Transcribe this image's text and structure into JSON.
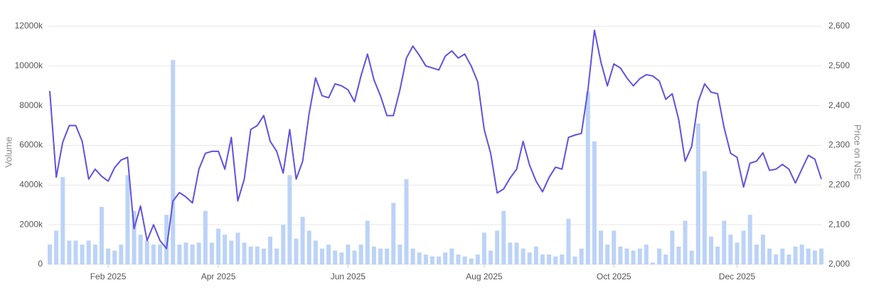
{
  "chart_data": {
    "type": "combo",
    "ylabel": "Volume",
    "y2label": "Price on NSE",
    "grid": true,
    "categories": [
      null,
      null,
      null,
      null,
      null,
      null,
      null,
      null,
      null,
      "Feb 2025",
      null,
      null,
      null,
      null,
      null,
      null,
      null,
      null,
      null,
      null,
      null,
      null,
      null,
      null,
      null,
      null,
      "Apr 2025",
      null,
      null,
      null,
      null,
      null,
      null,
      null,
      null,
      null,
      null,
      null,
      null,
      null,
      null,
      null,
      null,
      null,
      null,
      null,
      "Jun 2025",
      null,
      null,
      null,
      null,
      null,
      null,
      null,
      null,
      null,
      null,
      null,
      null,
      null,
      null,
      null,
      null,
      null,
      null,
      null,
      null,
      "Aug 2025",
      null,
      null,
      null,
      null,
      null,
      null,
      null,
      null,
      null,
      null,
      null,
      null,
      null,
      null,
      null,
      null,
      null,
      null,
      null,
      "Oct 2025",
      null,
      null,
      null,
      null,
      null,
      null,
      null,
      null,
      null,
      null,
      null,
      null,
      null,
      null,
      null,
      null,
      null,
      null,
      "Dec 2025",
      null,
      null,
      null,
      null,
      null,
      null,
      null,
      null,
      null,
      null,
      null,
      null,
      null
    ],
    "series": [
      {
        "type": "bar",
        "color": "#bcd3f7",
        "values": [
          1000000,
          1700000,
          4400000,
          1200000,
          1200000,
          1000000,
          1200000,
          1000000,
          2900000,
          800000,
          700000,
          1000000,
          4500000,
          2700000,
          1500000,
          1200000,
          1000000,
          1000000,
          2500000,
          10300000,
          1000000,
          1100000,
          1000000,
          1100000,
          2700000,
          1100000,
          1800000,
          1500000,
          1200000,
          1600000,
          1100000,
          900000,
          900000,
          800000,
          1400000,
          800000,
          2000000,
          4500000,
          1300000,
          2400000,
          1700000,
          1200000,
          800000,
          1000000,
          700000,
          600000,
          1000000,
          700000,
          1000000,
          2200000,
          900000,
          800000,
          800000,
          3100000,
          1000000,
          4300000,
          800000,
          600000,
          500000,
          400000,
          400000,
          600000,
          800000,
          500000,
          400000,
          300000,
          500000,
          1600000,
          700000,
          1700000,
          2700000,
          1100000,
          1100000,
          800000,
          600000,
          900000,
          500000,
          500000,
          400000,
          500000,
          2300000,
          400000,
          800000,
          8700000,
          6200000,
          1700000,
          1000000,
          1700000,
          900000,
          800000,
          700000,
          800000,
          1000000,
          100000,
          800000,
          500000,
          1700000,
          900000,
          2200000,
          700000,
          7100000,
          4700000,
          1400000,
          900000,
          2200000,
          1500000,
          1100000,
          1700000,
          2500000,
          1000000,
          1500000,
          800000,
          500000,
          800000,
          500000,
          900000,
          1000000,
          800000,
          700000,
          800000
        ]
      },
      {
        "type": "line",
        "axis": "y2",
        "color": "#5f52e0",
        "values": [
          2437,
          2220,
          2308,
          2350,
          2350,
          2310,
          2215,
          2240,
          2222,
          2210,
          2244,
          2263,
          2270,
          2090,
          2147,
          2060,
          2100,
          2060,
          2040,
          2160,
          2181,
          2170,
          2155,
          2240,
          2280,
          2285,
          2285,
          2240,
          2320,
          2160,
          2215,
          2340,
          2350,
          2375,
          2310,
          2285,
          2230,
          2340,
          2215,
          2260,
          2380,
          2470,
          2425,
          2420,
          2455,
          2450,
          2440,
          2410,
          2475,
          2530,
          2465,
          2425,
          2375,
          2375,
          2440,
          2520,
          2550,
          2527,
          2500,
          2495,
          2490,
          2525,
          2538,
          2520,
          2530,
          2500,
          2460,
          2340,
          2280,
          2180,
          2190,
          2218,
          2240,
          2310,
          2250,
          2210,
          2183,
          2219,
          2245,
          2240,
          2320,
          2326,
          2330,
          2440,
          2590,
          2510,
          2450,
          2505,
          2495,
          2470,
          2450,
          2468,
          2478,
          2475,
          2462,
          2416,
          2430,
          2365,
          2260,
          2297,
          2410,
          2455,
          2434,
          2430,
          2345,
          2280,
          2270,
          2195,
          2255,
          2260,
          2281,
          2237,
          2240,
          2252,
          2240,
          2205,
          2240,
          2275,
          2265,
          2215
        ]
      }
    ],
    "ylim": [
      0,
      12000000
    ],
    "yticks": [
      0,
      {
        "value": 2000000,
        "label": "2000k"
      },
      {
        "value": 4000000,
        "label": "4000k"
      },
      {
        "value": 6000000,
        "label": "6000k"
      },
      {
        "value": 8000000,
        "label": "8000k"
      },
      {
        "value": 10000000,
        "label": "10000k"
      },
      {
        "value": 12000000,
        "label": "12000k"
      }
    ],
    "y2lim": [
      2000,
      2600
    ],
    "y2ticks": [
      {
        "value": 2000,
        "label": "2,000"
      },
      {
        "value": 2100,
        "label": "2,100"
      },
      {
        "value": 2200,
        "label": "2,200"
      },
      {
        "value": 2300,
        "label": "2,300"
      },
      {
        "value": 2400,
        "label": "2,400"
      },
      {
        "value": 2500,
        "label": "2,500"
      },
      {
        "value": 2600,
        "label": "2,600"
      }
    ]
  }
}
